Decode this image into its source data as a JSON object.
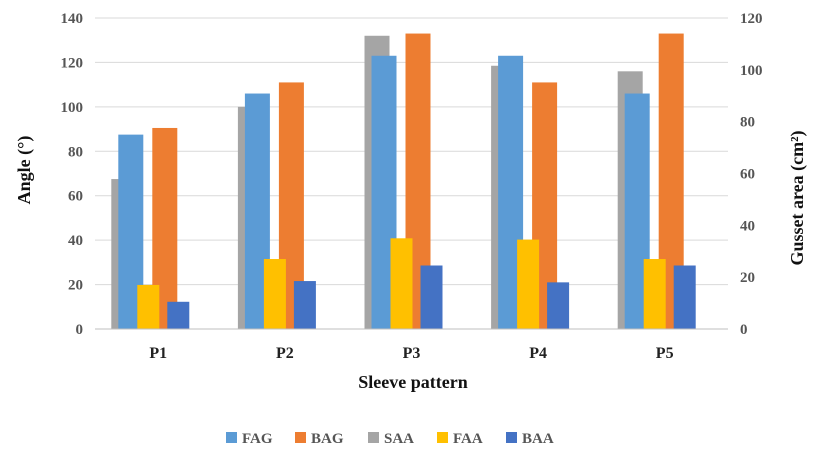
{
  "chart_data": {
    "type": "bar",
    "title": "",
    "xlabel": "Sleeve pattern",
    "ylabel": "Angle (°)",
    "y2label": "Gusset area (cm²)",
    "categories": [
      "P1",
      "P2",
      "P3",
      "P4",
      "P5"
    ],
    "ylim": [
      0,
      140
    ],
    "y2lim": [
      0,
      120
    ],
    "yticks": [
      0,
      20,
      40,
      60,
      80,
      100,
      120,
      140
    ],
    "y2ticks": [
      0,
      20,
      40,
      60,
      80,
      100,
      120
    ],
    "grid": true,
    "legend_position": "bottom",
    "back_series": [
      {
        "name": "SAA",
        "axis": "left",
        "color": "#a5a5a5",
        "values": [
          67.5,
          100,
          132,
          118.5,
          116
        ]
      },
      {
        "name": "FAG",
        "axis": "left",
        "color": "#5b9bd5",
        "values": [
          87.5,
          106,
          123,
          123,
          106
        ]
      }
    ],
    "front_series": [
      {
        "name": "BAG",
        "axis": "left",
        "color": "#ed7d31",
        "values": [
          90.5,
          111,
          133,
          111,
          133
        ]
      },
      {
        "name": "FAA",
        "axis": "right",
        "color": "#ffc000",
        "values": [
          17,
          27,
          35,
          34.5,
          27
        ]
      },
      {
        "name": "BAA",
        "axis": "right",
        "color": "#4472c4",
        "values": [
          10.5,
          18.5,
          24.5,
          18,
          24.5
        ]
      }
    ],
    "legend": [
      {
        "name": "FAG",
        "color": "#5b9bd5"
      },
      {
        "name": "BAG",
        "color": "#ed7d31"
      },
      {
        "name": "SAA",
        "color": "#a5a5a5"
      },
      {
        "name": "FAA",
        "color": "#ffc000"
      },
      {
        "name": "BAA",
        "color": "#4472c4"
      }
    ]
  }
}
